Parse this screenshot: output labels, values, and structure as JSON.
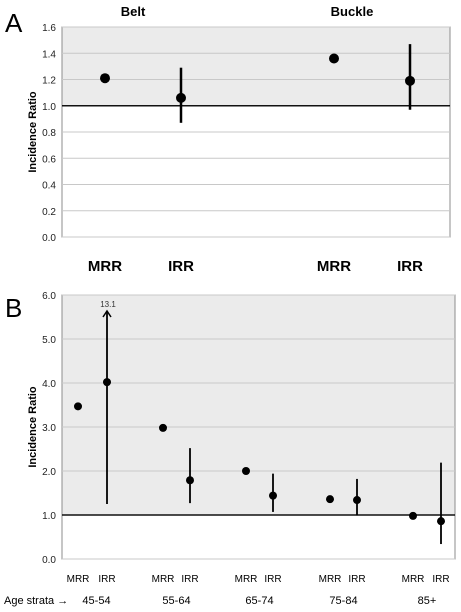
{
  "chart_data": [
    {
      "panel_label": "A",
      "type": "scatter",
      "ylabel": "Incidence Ratio",
      "ylim": [
        0,
        1.6
      ],
      "yticks": [
        "0.0",
        "0.2",
        "0.4",
        "0.6",
        "0.8",
        "1.0",
        "1.2",
        "1.4",
        "1.6"
      ],
      "reference_line": 1.0,
      "shaded_region": [
        1.0,
        1.6
      ],
      "groups": [
        "Belt",
        "Buckle"
      ],
      "categories": [
        "MRR",
        "IRR",
        "MRR",
        "IRR"
      ],
      "points": [
        {
          "group": "Belt",
          "category": "MRR",
          "value": 1.21,
          "ci": null
        },
        {
          "group": "Belt",
          "category": "IRR",
          "value": 1.06,
          "ci": [
            0.87,
            1.29
          ]
        },
        {
          "group": "Buckle",
          "category": "MRR",
          "value": 1.36,
          "ci": null
        },
        {
          "group": "Buckle",
          "category": "IRR",
          "value": 1.19,
          "ci": [
            0.97,
            1.47
          ]
        }
      ]
    },
    {
      "panel_label": "B",
      "type": "scatter",
      "ylabel": "Incidence Ratio",
      "ylim": [
        0.0,
        6.0
      ],
      "yticks": [
        "0.0",
        "1.0",
        "2.0",
        "3.0",
        "4.0",
        "5.0",
        "6.0"
      ],
      "reference_line": 1.0,
      "shaded_region": [
        1.0,
        6.0
      ],
      "xlabel_prefix": "Age strata →",
      "strata": [
        "45-54",
        "55-64",
        "65-74",
        "75-84",
        "85+"
      ],
      "sub_categories": [
        "MRR",
        "IRR"
      ],
      "points": [
        {
          "stratum": "45-54",
          "category": "MRR",
          "value": 3.47,
          "ci": null
        },
        {
          "stratum": "45-54",
          "category": "IRR",
          "value": 4.02,
          "ci": [
            1.25,
            13.1
          ],
          "upper_label": "13.1"
        },
        {
          "stratum": "55-64",
          "category": "MRR",
          "value": 2.98,
          "ci": null
        },
        {
          "stratum": "55-64",
          "category": "IRR",
          "value": 1.79,
          "ci": [
            1.27,
            2.52
          ]
        },
        {
          "stratum": "65-74",
          "category": "MRR",
          "value": 2.0,
          "ci": null
        },
        {
          "stratum": "65-74",
          "category": "IRR",
          "value": 1.44,
          "ci": [
            1.07,
            1.94
          ]
        },
        {
          "stratum": "75-84",
          "category": "MRR",
          "value": 1.36,
          "ci": null
        },
        {
          "stratum": "75-84",
          "category": "IRR",
          "value": 1.34,
          "ci": [
            0.99,
            1.82
          ]
        },
        {
          "stratum": "85+",
          "category": "MRR",
          "value": 0.98,
          "ci": null
        },
        {
          "stratum": "85+",
          "category": "IRR",
          "value": 0.86,
          "ci": [
            0.34,
            2.19
          ]
        }
      ]
    }
  ]
}
